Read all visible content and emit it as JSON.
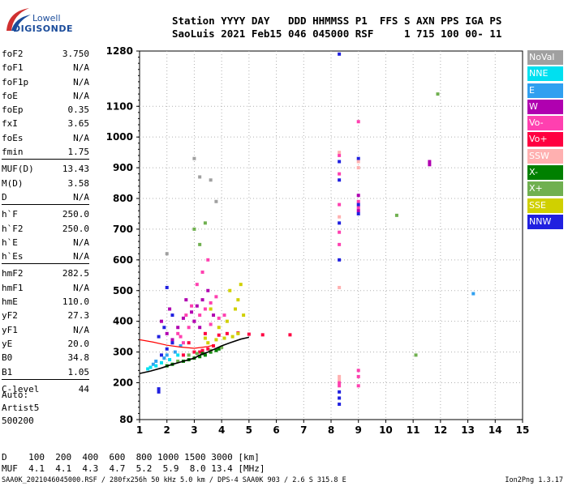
{
  "logo": {
    "line1": "Lowell",
    "line2": "DIGISONDE"
  },
  "header": {
    "line1": "Station YYYY DAY   DDD HHMMSS P1  FFS S AXN PPS IGA PS",
    "line2": "SaoLuis 2021 Feb15 046 045000 RSF     1 715 100 00- 11"
  },
  "params": [
    {
      "label": "foF2",
      "value": "3.750"
    },
    {
      "label": "foF1",
      "value": "N/A"
    },
    {
      "label": "foF1p",
      "value": "N/A"
    },
    {
      "label": "foE",
      "value": "N/A"
    },
    {
      "label": "foEp",
      "value": "0.35"
    },
    {
      "label": "fxI",
      "value": "3.65"
    },
    {
      "label": "foEs",
      "value": "N/A"
    },
    {
      "label": "fmin",
      "value": "1.75"
    },
    {
      "label": "MUF(D)",
      "value": "13.43"
    },
    {
      "label": "M(D)",
      "value": "3.58"
    },
    {
      "label": "D",
      "value": "N/A"
    },
    {
      "label": "h`F",
      "value": "250.0"
    },
    {
      "label": "h`F2",
      "value": "250.0"
    },
    {
      "label": "h`E",
      "value": "N/A"
    },
    {
      "label": "h`Es",
      "value": "N/A"
    },
    {
      "label": "hmF2",
      "value": "282.5"
    },
    {
      "label": "hmF1",
      "value": "N/A"
    },
    {
      "label": "hmE",
      "value": "110.0"
    },
    {
      "label": "yF2",
      "value": "27.3"
    },
    {
      "label": "yF1",
      "value": "N/A"
    },
    {
      "label": "yE",
      "value": "20.0"
    },
    {
      "label": "B0",
      "value": "34.8"
    },
    {
      "label": "B1",
      "value": "1.05"
    },
    {
      "label": "C-level",
      "value": "44"
    }
  ],
  "auto": {
    "line1": "Auto:",
    "line2": "Artist5",
    "line3": "500200"
  },
  "dmuf": {
    "line1": "D    100  200  400  600  800 1000 1500 3000 [km]",
    "line2": "MUF  4.1  4.1  4.3  4.7  5.2  5.9  8.0 13.4 [MHz]"
  },
  "footer": {
    "left": "SAA0K_2021046045000.RSF / 280fx256h 50 kHz 5.0 km / DPS-4 SAA0K 903 / 2.6 S 315.8 E",
    "right": "Ion2Png 1.3.17"
  },
  "legend": [
    {
      "label": "NoVal",
      "color": "#a0a0a0"
    },
    {
      "label": "NNE",
      "color": "#00e0f0"
    },
    {
      "label": "E",
      "color": "#30a0f0"
    },
    {
      "label": "W",
      "color": "#b000b0"
    },
    {
      "label": "Vo-",
      "color": "#ff40b0"
    },
    {
      "label": "Vo+",
      "color": "#ff0040"
    },
    {
      "label": "SSW",
      "color": "#ffb0b0"
    },
    {
      "label": "X-",
      "color": "#008000"
    },
    {
      "label": "X+",
      "color": "#70b050"
    },
    {
      "label": "SSE",
      "color": "#d0d000"
    },
    {
      "label": "NNW",
      "color": "#2020e0"
    }
  ],
  "chart_data": {
    "type": "scatter",
    "title": "",
    "xlabel": "",
    "ylabel": "",
    "xlim": [
      1,
      15
    ],
    "ylim": [
      80,
      1280
    ],
    "xticks": [
      "1",
      "2",
      "3",
      "4",
      "5",
      "6",
      "7",
      "8",
      "9",
      "10",
      "11",
      "12",
      "13",
      "14",
      "15"
    ],
    "yticks": [
      {
        "value": 80,
        "label": "80"
      },
      {
        "value": 200,
        "label": "200"
      },
      {
        "value": 300,
        "label": "300"
      },
      {
        "value": 400,
        "label": "400"
      },
      {
        "value": 500,
        "label": "500"
      },
      {
        "value": 600,
        "label": "600"
      },
      {
        "value": 700,
        "label": "700"
      },
      {
        "value": 800,
        "label": "800"
      },
      {
        "value": 900,
        "label": "900"
      },
      {
        "value": 1000,
        "label": "1000"
      },
      {
        "value": 1100,
        "label": "1100"
      },
      {
        "value": 1280,
        "label": "1280"
      }
    ],
    "grid": true,
    "series": [
      {
        "color": "#ff0040",
        "points": [
          [
            3.2,
            300
          ],
          [
            3.3,
            305
          ],
          [
            3.5,
            310
          ],
          [
            3.7,
            320
          ],
          [
            3.4,
            360
          ],
          [
            3.9,
            355
          ],
          [
            4.2,
            360
          ],
          [
            4.6,
            362
          ],
          [
            5.0,
            358
          ],
          [
            5.5,
            356
          ],
          [
            6.5,
            356
          ],
          [
            2.8,
            330
          ],
          [
            3.0,
            300
          ],
          [
            2.6,
            290
          ]
        ]
      },
      {
        "color": "#ff40b0",
        "points": [
          [
            2.5,
            350
          ],
          [
            2.8,
            380
          ],
          [
            3.0,
            400
          ],
          [
            3.2,
            420
          ],
          [
            3.4,
            440
          ],
          [
            3.6,
            460
          ],
          [
            3.8,
            480
          ],
          [
            3.1,
            520
          ],
          [
            3.3,
            560
          ],
          [
            3.5,
            600
          ],
          [
            2.9,
            450
          ],
          [
            2.7,
            420
          ],
          [
            3.6,
            390
          ],
          [
            3.9,
            410
          ],
          [
            4.1,
            420
          ],
          [
            2.6,
            330
          ],
          [
            2.2,
            330
          ],
          [
            2.4,
            360
          ],
          [
            9.0,
            1050
          ],
          [
            9.0,
            790
          ],
          [
            9.0,
            770
          ],
          [
            8.3,
            940
          ],
          [
            8.3,
            880
          ],
          [
            8.3,
            780
          ],
          [
            8.3,
            690
          ],
          [
            8.3,
            650
          ],
          [
            8.3,
            200
          ],
          [
            8.3,
            190
          ],
          [
            9.0,
            240
          ],
          [
            9.0,
            220
          ],
          [
            9.0,
            190
          ]
        ]
      },
      {
        "color": "#b000b0",
        "points": [
          [
            2.4,
            380
          ],
          [
            2.6,
            410
          ],
          [
            2.9,
            430
          ],
          [
            3.1,
            450
          ],
          [
            3.3,
            470
          ],
          [
            3.0,
            400
          ],
          [
            3.5,
            500
          ],
          [
            2.2,
            340
          ],
          [
            2.0,
            360
          ],
          [
            1.8,
            400
          ],
          [
            2.1,
            440
          ],
          [
            3.7,
            420
          ],
          [
            3.2,
            380
          ],
          [
            2.7,
            470
          ],
          [
            9.0,
            810
          ],
          [
            9.0,
            760
          ],
          [
            11.6,
            920
          ],
          [
            11.6,
            910
          ]
        ]
      },
      {
        "color": "#2020e0",
        "points": [
          [
            1.8,
            290
          ],
          [
            2.0,
            310
          ],
          [
            2.2,
            330
          ],
          [
            2.0,
            510
          ],
          [
            2.2,
            420
          ],
          [
            1.9,
            380
          ],
          [
            1.7,
            350
          ],
          [
            1.7,
            180
          ],
          [
            1.7,
            170
          ],
          [
            8.3,
            1270
          ],
          [
            8.3,
            920
          ],
          [
            8.3,
            860
          ],
          [
            8.3,
            720
          ],
          [
            8.3,
            600
          ],
          [
            8.3,
            170
          ],
          [
            8.3,
            150
          ],
          [
            8.3,
            130
          ],
          [
            9.0,
            930
          ],
          [
            9.0,
            780
          ],
          [
            9.0,
            750
          ]
        ]
      },
      {
        "color": "#30a0f0",
        "points": [
          [
            1.6,
            270
          ],
          [
            1.9,
            280
          ],
          [
            2.3,
            300
          ],
          [
            2.0,
            290
          ],
          [
            1.5,
            260
          ],
          [
            2.5,
            320
          ],
          [
            13.2,
            490
          ]
        ]
      },
      {
        "color": "#00e0f0",
        "points": [
          [
            1.4,
            250
          ],
          [
            1.6,
            255
          ],
          [
            1.8,
            265
          ],
          [
            2.1,
            275
          ],
          [
            1.3,
            245
          ],
          [
            2.4,
            290
          ]
        ]
      },
      {
        "color": "#008000",
        "points": [
          [
            2.2,
            260
          ],
          [
            2.6,
            270
          ],
          [
            3.0,
            280
          ],
          [
            3.4,
            290
          ],
          [
            3.6,
            300
          ],
          [
            3.8,
            305
          ],
          [
            2.8,
            275
          ],
          [
            3.2,
            285
          ],
          [
            3.3,
            295
          ],
          [
            3.9,
            310
          ],
          [
            2.0,
            255
          ]
        ]
      },
      {
        "color": "#70b050",
        "points": [
          [
            2.4,
            270
          ],
          [
            2.8,
            290
          ],
          [
            3.1,
            295
          ],
          [
            3.6,
            305
          ],
          [
            4.0,
            315
          ],
          [
            3.2,
            650
          ],
          [
            3.4,
            720
          ],
          [
            3.0,
            700
          ],
          [
            11.9,
            1140
          ],
          [
            10.4,
            745
          ],
          [
            11.1,
            290
          ]
        ]
      },
      {
        "color": "#d0d000",
        "points": [
          [
            3.5,
            330
          ],
          [
            3.8,
            340
          ],
          [
            4.1,
            345
          ],
          [
            4.4,
            350
          ],
          [
            4.6,
            360
          ],
          [
            4.2,
            400
          ],
          [
            4.5,
            440
          ],
          [
            4.3,
            500
          ],
          [
            4.6,
            470
          ],
          [
            4.8,
            420
          ],
          [
            3.9,
            380
          ],
          [
            3.4,
            345
          ],
          [
            4.7,
            520
          ],
          [
            3.6,
            440
          ]
        ]
      },
      {
        "color": "#ffb0b0",
        "points": [
          [
            8.3,
            950
          ],
          [
            8.3,
            740
          ],
          [
            8.3,
            510
          ],
          [
            9.0,
            920
          ],
          [
            9.0,
            900
          ],
          [
            8.3,
            220
          ],
          [
            8.3,
            210
          ]
        ]
      },
      {
        "color": "#a0a0a0",
        "points": [
          [
            3.0,
            930
          ],
          [
            3.2,
            870
          ],
          [
            3.6,
            860
          ],
          [
            2.0,
            620
          ],
          [
            3.8,
            790
          ]
        ]
      }
    ],
    "trace": {
      "color": "#000000",
      "points": [
        [
          1.0,
          230
        ],
        [
          1.4,
          238
        ],
        [
          1.8,
          248
        ],
        [
          2.2,
          260
        ],
        [
          2.6,
          270
        ],
        [
          3.0,
          280
        ],
        [
          3.2,
          290
        ],
        [
          3.5,
          300
        ],
        [
          3.75,
          310
        ],
        [
          4.0,
          320
        ],
        [
          4.3,
          330
        ],
        [
          4.7,
          342
        ],
        [
          5.0,
          348
        ]
      ]
    },
    "trace2": {
      "color": "#ff0000",
      "points": [
        [
          1.0,
          340
        ],
        [
          1.5,
          332
        ],
        [
          2.0,
          322
        ],
        [
          2.5,
          316
        ],
        [
          3.0,
          312
        ],
        [
          3.5,
          318
        ],
        [
          3.7,
          322
        ]
      ]
    }
  }
}
